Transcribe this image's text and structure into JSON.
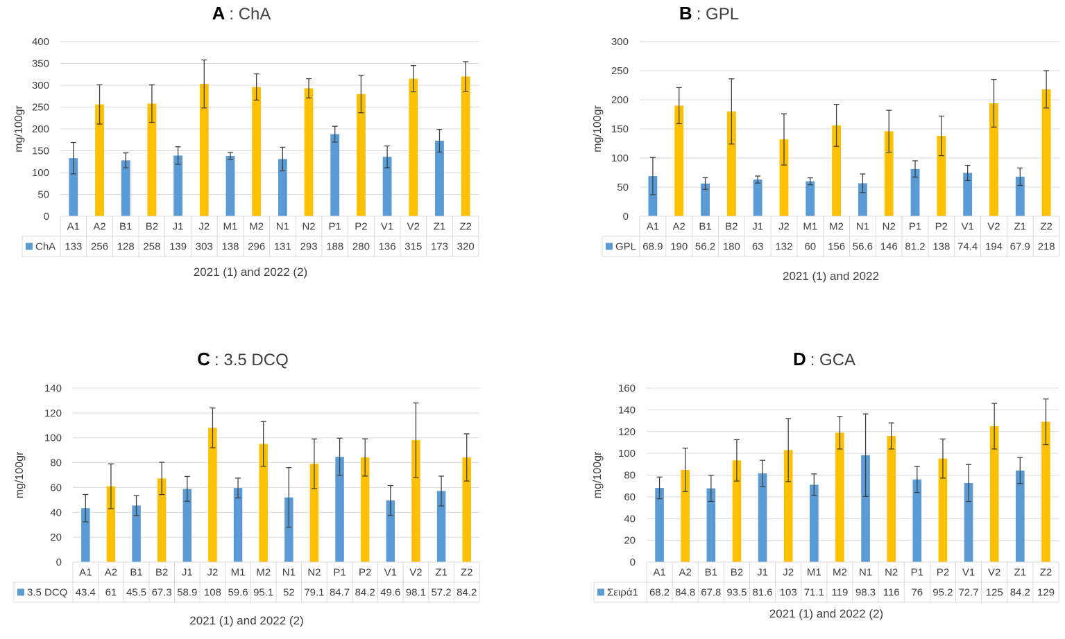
{
  "colors": {
    "year1": "#5B9BD5",
    "year2": "#FFC000",
    "grid": "#D9D9D9",
    "text": "#404040",
    "error": "#404040"
  },
  "chart_data": [
    {
      "type": "bar",
      "panel_letter": "A",
      "title": ": ChA",
      "ylabel": "mg/100gr",
      "xlabel": "2021 (1) and 2022 (2)",
      "series_name": "ChA",
      "ylim": [
        0,
        400
      ],
      "yticks": [
        0,
        50,
        100,
        150,
        200,
        250,
        300,
        350,
        400
      ],
      "categories": [
        "A1",
        "A2",
        "B1",
        "B2",
        "J1",
        "J2",
        "M1",
        "M2",
        "N1",
        "N2",
        "P1",
        "P2",
        "V1",
        "V2",
        "Z1",
        "Z2"
      ],
      "values": [
        133,
        256,
        128,
        258,
        139,
        303,
        138,
        296,
        131,
        293,
        188,
        280,
        136,
        315,
        173,
        320
      ],
      "value_labels": [
        "133",
        "256",
        "128",
        "258",
        "139",
        "303",
        "138",
        "296",
        "131",
        "293",
        "188",
        "280",
        "136",
        "315",
        "173",
        "320"
      ],
      "errors": [
        36,
        45,
        17,
        43,
        20,
        55,
        8,
        30,
        27,
        22,
        18,
        43,
        25,
        30,
        26,
        34
      ]
    },
    {
      "type": "bar",
      "panel_letter": "B",
      "title": ": GPL",
      "ylabel": "mg/100gr",
      "xlabel": "2021 (1) and 2022",
      "series_name": "GPL",
      "ylim": [
        0,
        300
      ],
      "yticks": [
        0,
        50,
        100,
        150,
        200,
        250,
        300
      ],
      "categories": [
        "A1",
        "A2",
        "B1",
        "B2",
        "J1",
        "J2",
        "M1",
        "M2",
        "N1",
        "N2",
        "P1",
        "P2",
        "V1",
        "V2",
        "Z1",
        "Z2"
      ],
      "values": [
        68.9,
        190,
        56.2,
        180,
        63,
        132,
        60,
        156,
        56.6,
        146,
        81.2,
        138,
        74.4,
        194,
        67.9,
        218
      ],
      "value_labels": [
        "68.9",
        "190",
        "56.2",
        "180",
        "63",
        "132",
        "60",
        "156",
        "56.6",
        "146",
        "81.2",
        "138",
        "74.4",
        "194",
        "67.9",
        "218"
      ],
      "errors": [
        32,
        31,
        10,
        56,
        6,
        44,
        6,
        36,
        16,
        36,
        14,
        34,
        13,
        41,
        15,
        32
      ]
    },
    {
      "type": "bar",
      "panel_letter": "C",
      "title": ":  3.5 DCQ",
      "ylabel": "mg/100gr",
      "xlabel": "2021 (1) and 2022 (2)",
      "series_name": "3.5 DCQ",
      "ylim": [
        0,
        140
      ],
      "yticks": [
        0,
        20,
        40,
        60,
        80,
        100,
        120,
        140
      ],
      "categories": [
        "A1",
        "A2",
        "B1",
        "B2",
        "J1",
        "J2",
        "M1",
        "M2",
        "N1",
        "N2",
        "P1",
        "P2",
        "V1",
        "V2",
        "Z1",
        "Z2"
      ],
      "values": [
        43.4,
        61,
        45.5,
        67.3,
        58.9,
        108,
        59.6,
        95.1,
        52,
        79.1,
        84.7,
        84.2,
        49.6,
        98.1,
        57.2,
        84.2
      ],
      "value_labels": [
        "43.4",
        "61",
        "45.5",
        "67.3",
        "58.9",
        "108",
        "59.6",
        "95.1",
        "52",
        "79.1",
        "84.7",
        "84.2",
        "49.6",
        "98.1",
        "57.2",
        "84.2"
      ],
      "errors": [
        11,
        18,
        8,
        13,
        10,
        16,
        8,
        18,
        24,
        20,
        15,
        15,
        12,
        30,
        12,
        19
      ]
    },
    {
      "type": "bar",
      "panel_letter": "D",
      "title": ": GCA",
      "ylabel": "mg/100gr",
      "xlabel": "2021 (1) and 2022 (2)",
      "series_name": "Σειρά1",
      "ylim": [
        0,
        160
      ],
      "yticks": [
        0,
        20,
        40,
        60,
        80,
        100,
        120,
        140,
        160
      ],
      "categories": [
        "A1",
        "A2",
        "B1",
        "B2",
        "J1",
        "J2",
        "M1",
        "M2",
        "N1",
        "N2",
        "P1",
        "P2",
        "V1",
        "V2",
        "Z1",
        "Z2"
      ],
      "values": [
        68.2,
        84.8,
        67.8,
        93.5,
        81.6,
        103,
        71.1,
        119,
        98.3,
        116,
        76,
        95.2,
        72.7,
        125,
        84.2,
        129
      ],
      "value_labels": [
        "68.2",
        "84.8",
        "67.8",
        "93.5",
        "81.6",
        "103",
        "71.1",
        "119",
        "98.3",
        "116",
        "76",
        "95.2",
        "72.7",
        "125",
        "84.2",
        "129"
      ],
      "errors": [
        10,
        20,
        12,
        19,
        12,
        29,
        10,
        15,
        38,
        12,
        12,
        18,
        17,
        21,
        12,
        21
      ]
    }
  ]
}
